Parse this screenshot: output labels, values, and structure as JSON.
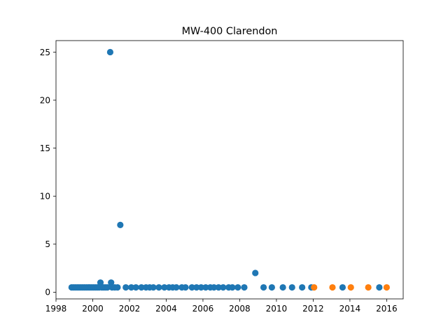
{
  "chart_data": {
    "type": "scatter",
    "title": "MW-400 Clarendon",
    "xlabel": "",
    "ylabel": "",
    "xlim": [
      1998,
      2016.9
    ],
    "ylim": [
      -0.7,
      26.2
    ],
    "x_ticks": [
      "1998",
      "2000",
      "2002",
      "2004",
      "2006",
      "2008",
      "2010",
      "2012",
      "2014",
      "2016"
    ],
    "y_ticks": [
      "0",
      "5",
      "10",
      "15",
      "20",
      "25"
    ],
    "grid": false,
    "legend": "none",
    "series": [
      {
        "color": "#1f77b4",
        "points": [
          {
            "x": 1998.85,
            "y": 0.5
          },
          {
            "x": 1998.95,
            "y": 0.5
          },
          {
            "x": 1999.05,
            "y": 0.5
          },
          {
            "x": 1999.15,
            "y": 0.5
          },
          {
            "x": 1999.25,
            "y": 0.5
          },
          {
            "x": 1999.35,
            "y": 0.5
          },
          {
            "x": 1999.45,
            "y": 0.5
          },
          {
            "x": 1999.55,
            "y": 0.5
          },
          {
            "x": 1999.65,
            "y": 0.5
          },
          {
            "x": 1999.75,
            "y": 0.5
          },
          {
            "x": 1999.85,
            "y": 0.5
          },
          {
            "x": 1999.95,
            "y": 0.5
          },
          {
            "x": 2000.05,
            "y": 0.5
          },
          {
            "x": 2000.15,
            "y": 0.5
          },
          {
            "x": 2000.25,
            "y": 0.5
          },
          {
            "x": 2000.35,
            "y": 0.5
          },
          {
            "x": 2000.42,
            "y": 1.0
          },
          {
            "x": 2000.5,
            "y": 0.5
          },
          {
            "x": 2000.6,
            "y": 0.5
          },
          {
            "x": 2000.7,
            "y": 0.5
          },
          {
            "x": 2000.8,
            "y": 0.5
          },
          {
            "x": 2000.95,
            "y": 25.0
          },
          {
            "x": 2001.0,
            "y": 1.0
          },
          {
            "x": 2001.05,
            "y": 0.5
          },
          {
            "x": 2001.2,
            "y": 0.5
          },
          {
            "x": 2001.35,
            "y": 0.5
          },
          {
            "x": 2001.5,
            "y": 7.0
          },
          {
            "x": 2001.8,
            "y": 0.5
          },
          {
            "x": 2002.1,
            "y": 0.5
          },
          {
            "x": 2002.35,
            "y": 0.5
          },
          {
            "x": 2002.65,
            "y": 0.5
          },
          {
            "x": 2002.9,
            "y": 0.5
          },
          {
            "x": 2003.1,
            "y": 0.5
          },
          {
            "x": 2003.3,
            "y": 0.5
          },
          {
            "x": 2003.6,
            "y": 0.5
          },
          {
            "x": 2003.9,
            "y": 0.5
          },
          {
            "x": 2004.15,
            "y": 0.5
          },
          {
            "x": 2004.35,
            "y": 0.5
          },
          {
            "x": 2004.55,
            "y": 0.5
          },
          {
            "x": 2004.85,
            "y": 0.5
          },
          {
            "x": 2005.05,
            "y": 0.5
          },
          {
            "x": 2005.4,
            "y": 0.5
          },
          {
            "x": 2005.65,
            "y": 0.5
          },
          {
            "x": 2005.9,
            "y": 0.5
          },
          {
            "x": 2006.15,
            "y": 0.5
          },
          {
            "x": 2006.4,
            "y": 0.5
          },
          {
            "x": 2006.6,
            "y": 0.5
          },
          {
            "x": 2006.85,
            "y": 0.5
          },
          {
            "x": 2007.1,
            "y": 0.5
          },
          {
            "x": 2007.4,
            "y": 0.5
          },
          {
            "x": 2007.6,
            "y": 0.5
          },
          {
            "x": 2007.9,
            "y": 0.5
          },
          {
            "x": 2008.25,
            "y": 0.5
          },
          {
            "x": 2008.85,
            "y": 2.0
          },
          {
            "x": 2009.3,
            "y": 0.5
          },
          {
            "x": 2009.75,
            "y": 0.5
          },
          {
            "x": 2010.35,
            "y": 0.5
          },
          {
            "x": 2010.85,
            "y": 0.5
          },
          {
            "x": 2011.4,
            "y": 0.5
          },
          {
            "x": 2011.9,
            "y": 0.5
          },
          {
            "x": 2013.6,
            "y": 0.5
          },
          {
            "x": 2015.6,
            "y": 0.5
          }
        ]
      },
      {
        "color": "#ff7f0e",
        "points": [
          {
            "x": 2012.05,
            "y": 0.5
          },
          {
            "x": 2013.05,
            "y": 0.5
          },
          {
            "x": 2014.05,
            "y": 0.5
          },
          {
            "x": 2015.0,
            "y": 0.5
          },
          {
            "x": 2016.0,
            "y": 0.5
          }
        ]
      }
    ]
  }
}
